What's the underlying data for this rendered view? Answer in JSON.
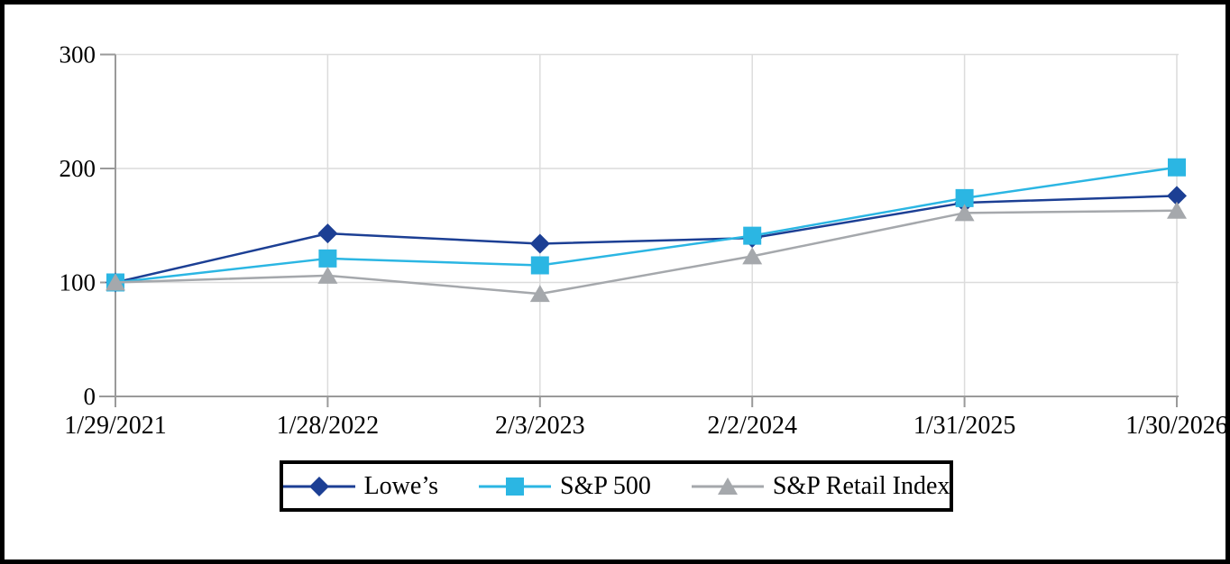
{
  "chart_data": {
    "type": "line",
    "title": "",
    "x_labels": [
      "1/29/2021",
      "1/28/2022",
      "2/3/2023",
      "2/2/2024",
      "1/31/2025",
      "1/30/2026"
    ],
    "y_ticks": [
      0,
      100,
      200,
      300
    ],
    "ylim": [
      0,
      300
    ],
    "grid": true,
    "legend_position": "bottom-center",
    "series": [
      {
        "name": "Lowe’s",
        "marker": "diamond",
        "color": "#1C3F94",
        "values": [
          100,
          143,
          134,
          139,
          170,
          176
        ]
      },
      {
        "name": "S&P 500",
        "marker": "square",
        "color": "#2BB6E3",
        "values": [
          100,
          121,
          115,
          141,
          174,
          201
        ]
      },
      {
        "name": "S&P Retail Index",
        "marker": "triangle",
        "color": "#A5A8AC",
        "values": [
          100,
          106,
          90,
          123,
          161,
          163
        ]
      }
    ]
  },
  "colors": {
    "background": "#FFFFFF",
    "frame_border": "#000000",
    "legend_border": "#000000",
    "gridline": "#DCDCDC",
    "axis": "#9A9A9A",
    "text": "#000000"
  }
}
